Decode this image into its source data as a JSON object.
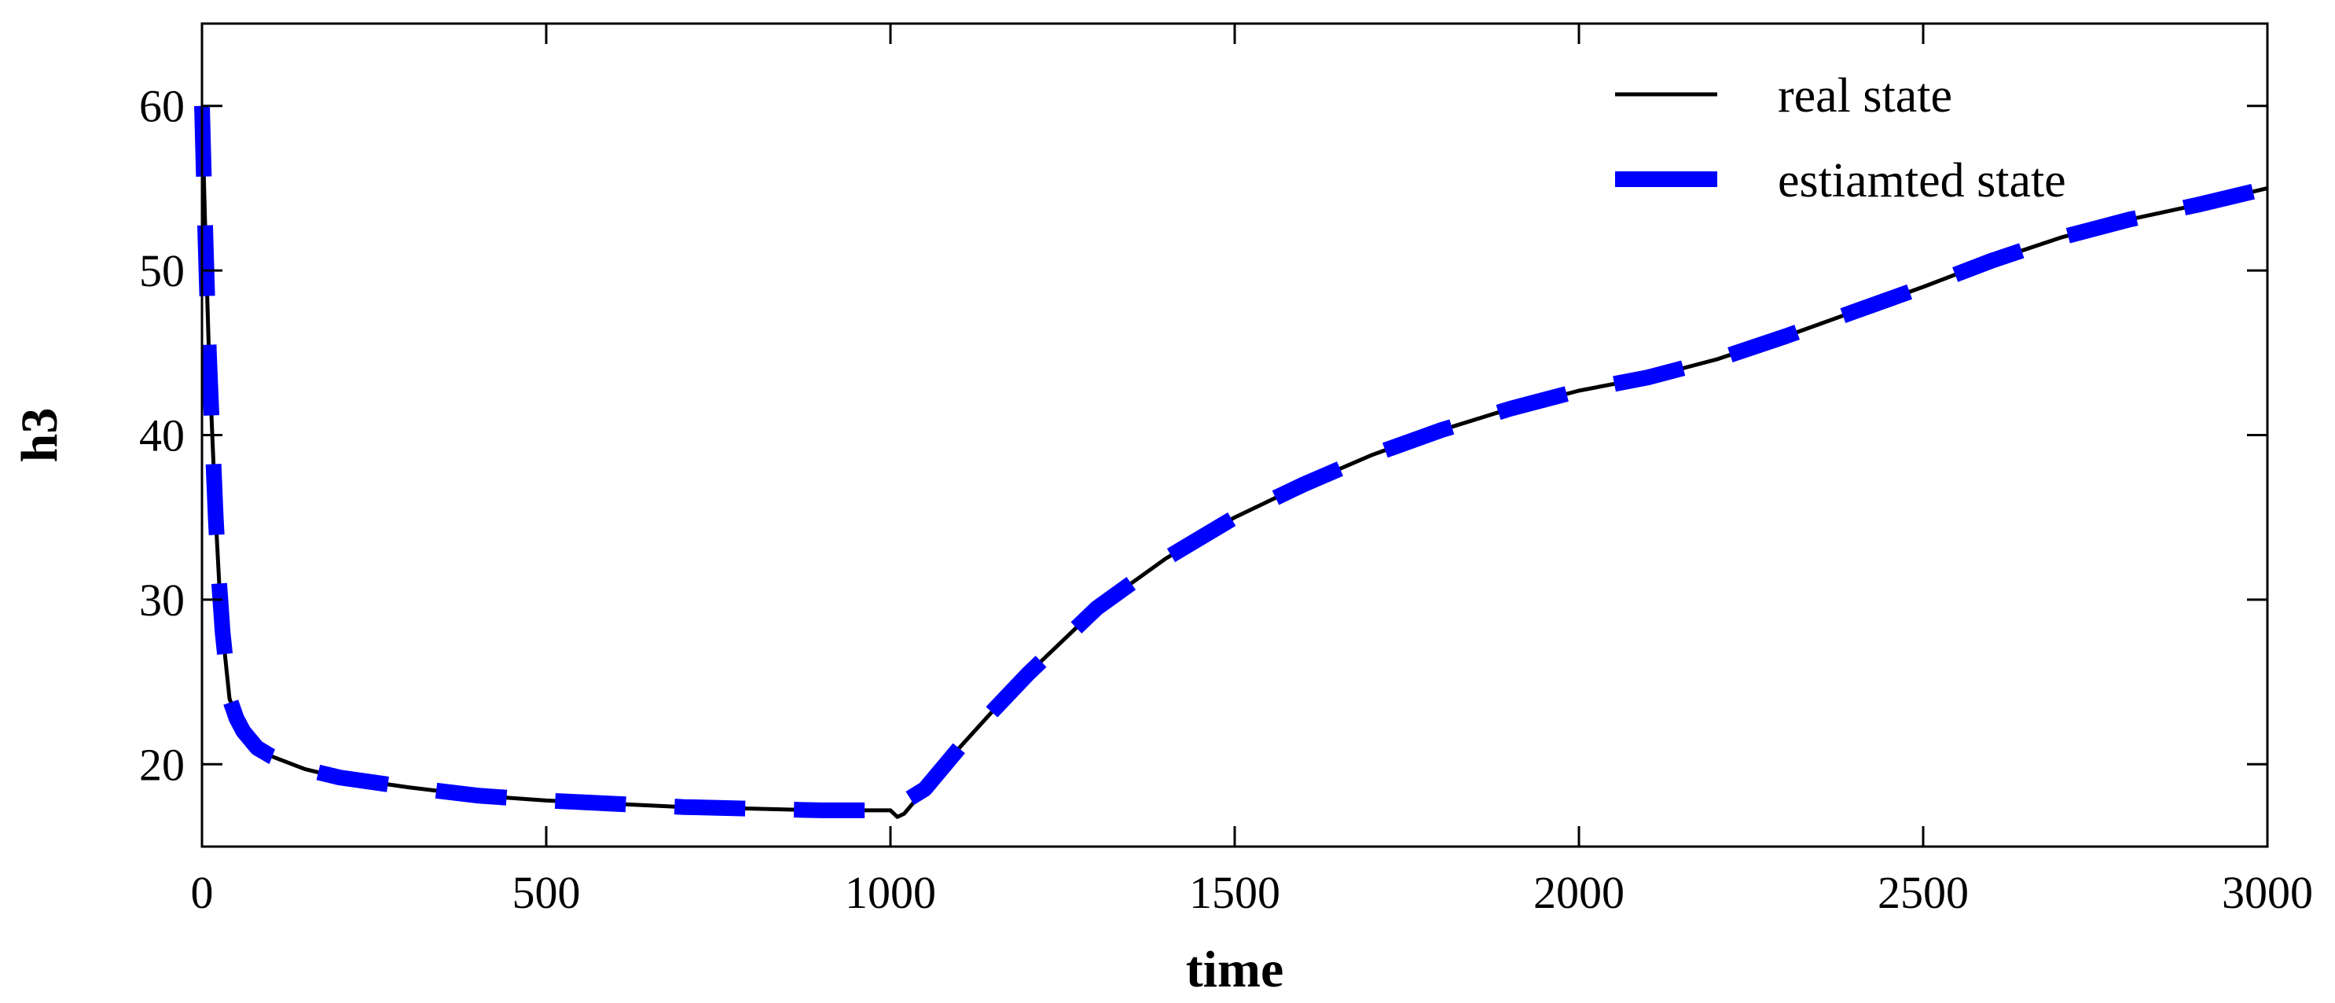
{
  "chart_data": {
    "type": "line",
    "xlabel": "time",
    "ylabel": "h3",
    "xlim": [
      0,
      3000
    ],
    "ylim": [
      15,
      65
    ],
    "xticks": [
      0,
      500,
      1000,
      1500,
      2000,
      2500,
      3000
    ],
    "yticks": [
      20,
      30,
      40,
      50,
      60
    ],
    "grid": false,
    "legend_position": "top-right",
    "series": [
      {
        "name": "real state",
        "color": "#000000",
        "style": "solid",
        "x": [
          0,
          5,
          10,
          15,
          20,
          25,
          30,
          40,
          50,
          60,
          80,
          100,
          150,
          200,
          300,
          400,
          500,
          600,
          700,
          800,
          900,
          1000,
          1010,
          1020,
          1050,
          1100,
          1150,
          1200,
          1300,
          1400,
          1500,
          1600,
          1700,
          1800,
          1900,
          2000,
          2100,
          2200,
          2300,
          2400,
          2500,
          2600,
          2700,
          2800,
          2900,
          3000
        ],
        "y": [
          60,
          52,
          45,
          40,
          35,
          31,
          28,
          24,
          22.8,
          22,
          21,
          20.5,
          19.7,
          19.2,
          18.6,
          18.1,
          17.8,
          17.6,
          17.4,
          17.3,
          17.2,
          17.2,
          16.8,
          17.0,
          18.5,
          21,
          23.3,
          25.5,
          29.5,
          32.5,
          35,
          37,
          38.8,
          40.3,
          41.6,
          42.7,
          43.5,
          44.6,
          46,
          47.5,
          49,
          50.6,
          52,
          53.1,
          54,
          55
        ]
      },
      {
        "name": "estiamted state",
        "color": "#0000ff",
        "style": "dashed",
        "x": [
          0,
          5,
          10,
          15,
          20,
          25,
          30,
          40,
          50,
          60,
          80,
          100,
          150,
          200,
          300,
          400,
          500,
          600,
          700,
          800,
          900,
          1000,
          1050,
          1100,
          1150,
          1200,
          1300,
          1400,
          1500,
          1600,
          1700,
          1800,
          1900,
          2000,
          2100,
          2200,
          2300,
          2400,
          2500,
          2600,
          2700,
          2800,
          2900,
          3000
        ],
        "y": [
          60,
          52,
          45,
          40,
          35,
          31,
          28,
          24,
          22.8,
          22,
          21,
          20.5,
          19.7,
          19.2,
          18.6,
          18.1,
          17.8,
          17.6,
          17.4,
          17.3,
          17.2,
          17.2,
          18.5,
          21,
          23.3,
          25.5,
          29.5,
          32.5,
          35,
          37,
          38.8,
          40.3,
          41.6,
          42.7,
          43.5,
          44.6,
          46,
          47.5,
          49,
          50.6,
          52,
          53.1,
          54,
          55
        ]
      }
    ]
  }
}
